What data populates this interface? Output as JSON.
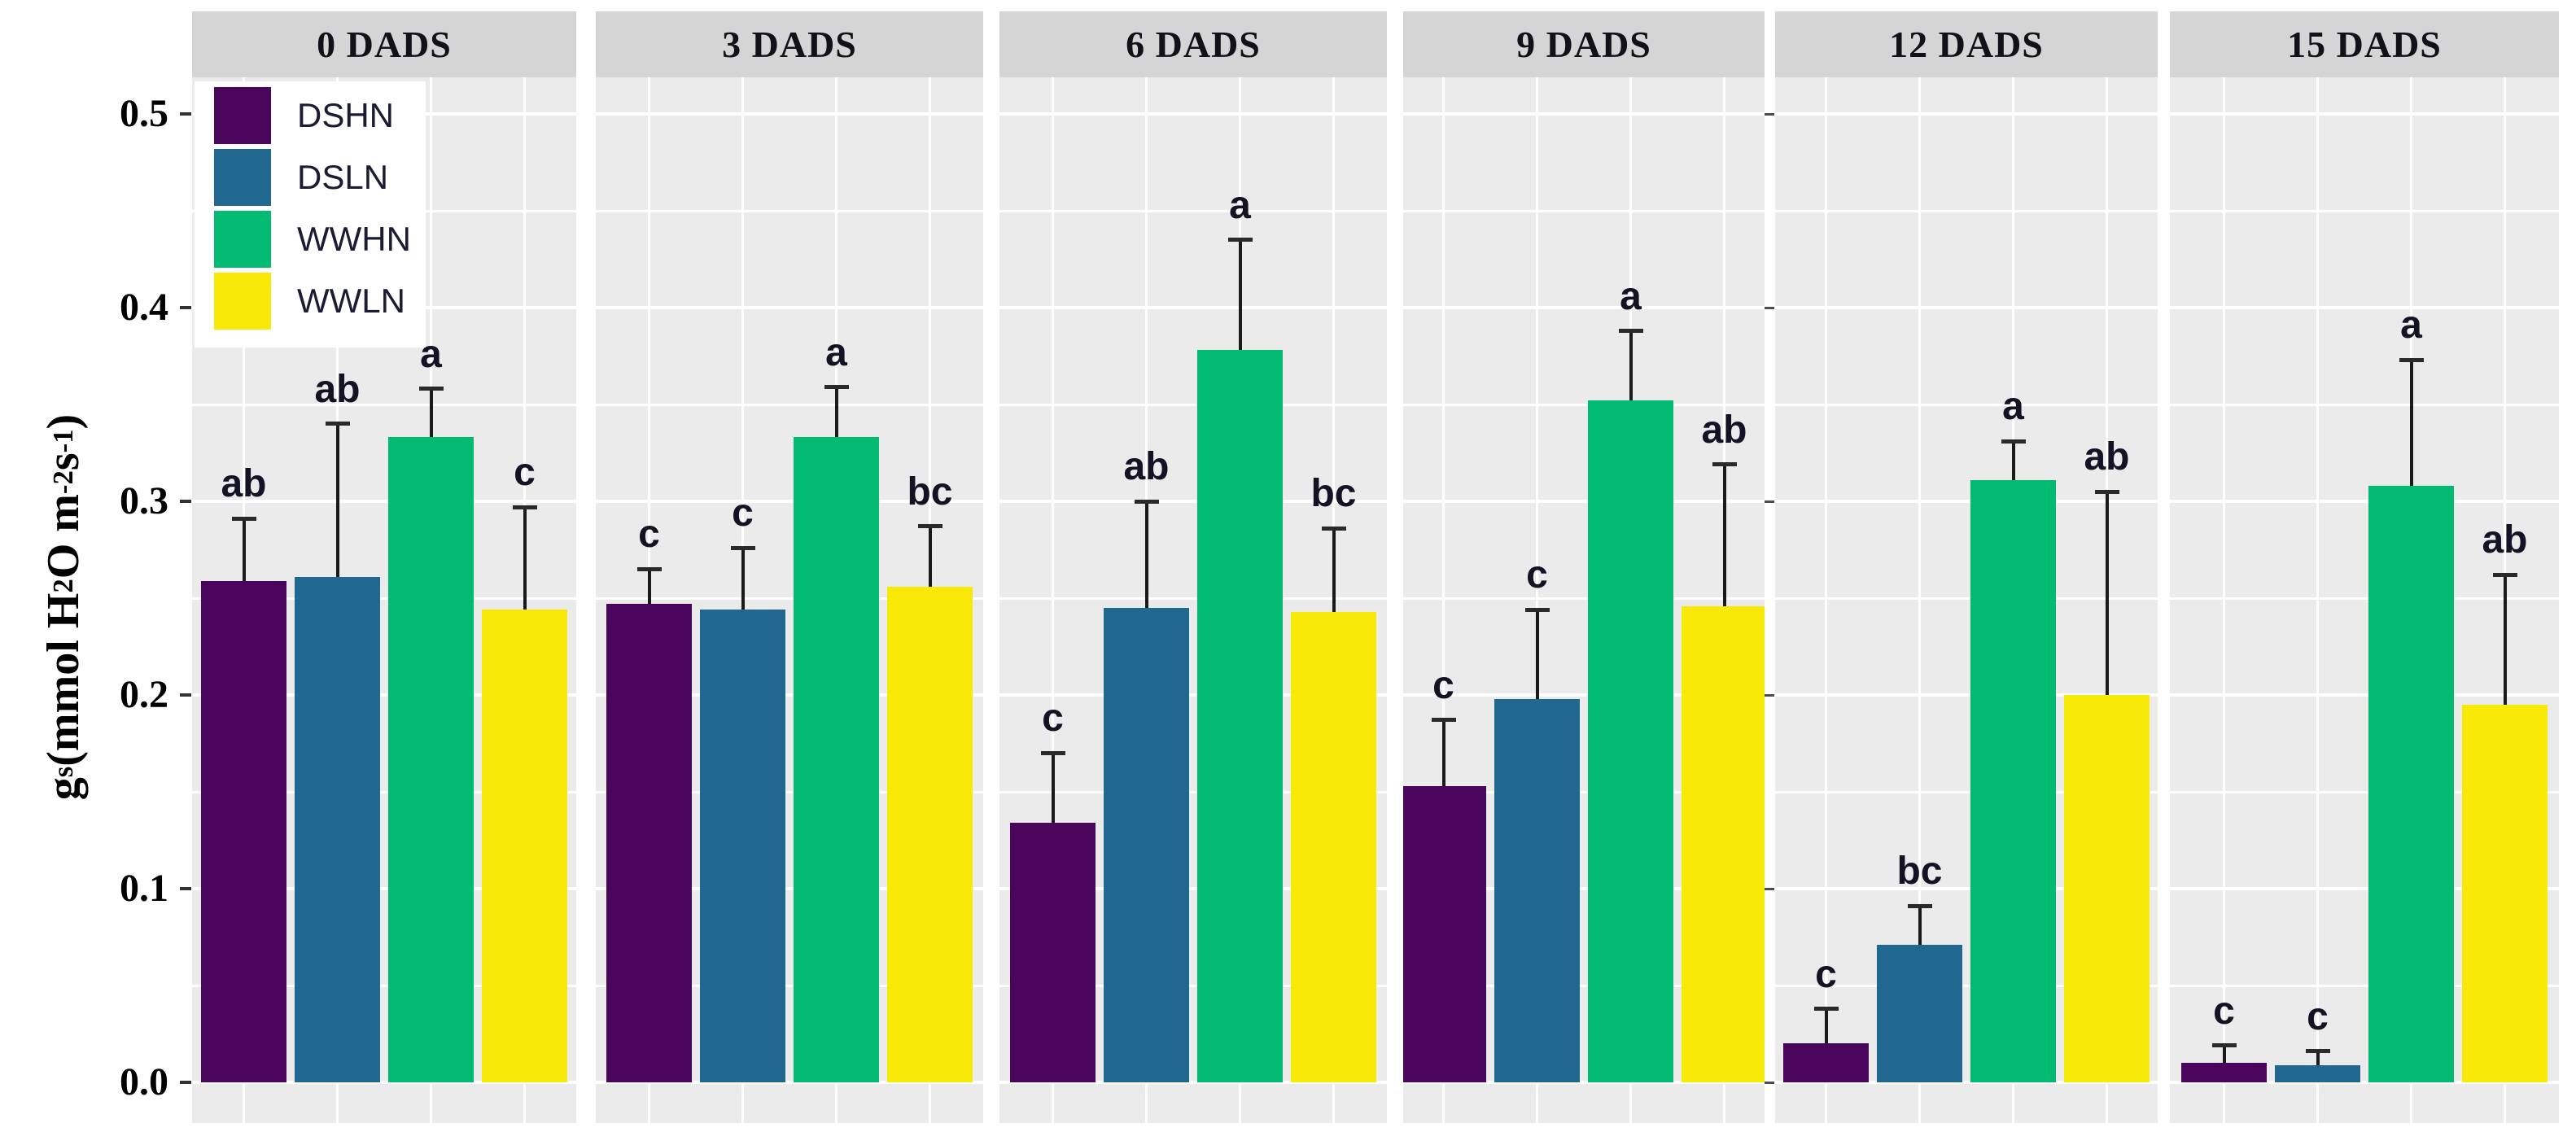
{
  "chart_data": {
    "type": "bar",
    "title": "",
    "ylabel": "gs (mmol H2O m-2 s-1)",
    "ylabel_parts": [
      {
        "text": "g"
      },
      {
        "text": "s",
        "style": "sub"
      },
      {
        "text": " (mmol H"
      },
      {
        "text": "2",
        "style": "sub"
      },
      {
        "text": "O m"
      },
      {
        "text": "-2",
        "style": "sup"
      },
      {
        "text": " s"
      },
      {
        "text": "-1",
        "style": "sup"
      },
      {
        "text": ")"
      }
    ],
    "xlabel": "",
    "ylim": [
      0,
      0.52
    ],
    "grid": true,
    "yticks": [
      {
        "value": 0.0,
        "label": "0.0"
      },
      {
        "value": 0.1,
        "label": "0.1"
      },
      {
        "value": 0.2,
        "label": "0.2"
      },
      {
        "value": 0.3,
        "label": "0.3"
      },
      {
        "value": 0.4,
        "label": "0.4"
      },
      {
        "value": 0.5,
        "label": "0.5"
      }
    ],
    "series_order": [
      "DSHN",
      "DSLN",
      "WWHN",
      "WWLN"
    ],
    "facets": [
      {
        "label": "0 DADS",
        "bars": [
          {
            "group": "DSHN",
            "value": 0.259,
            "error_top": 0.291,
            "letter": "ab"
          },
          {
            "group": "DSLN",
            "value": 0.261,
            "error_top": 0.34,
            "letter": "ab"
          },
          {
            "group": "WWHN",
            "value": 0.333,
            "error_top": 0.358,
            "letter": "a"
          },
          {
            "group": "WWLN",
            "value": 0.244,
            "error_top": 0.297,
            "letter": "c"
          }
        ]
      },
      {
        "label": "3 DADS",
        "bars": [
          {
            "group": "DSHN",
            "value": 0.247,
            "error_top": 0.265,
            "letter": "c"
          },
          {
            "group": "DSLN",
            "value": 0.244,
            "error_top": 0.276,
            "letter": "c"
          },
          {
            "group": "WWHN",
            "value": 0.333,
            "error_top": 0.359,
            "letter": "a"
          },
          {
            "group": "WWLN",
            "value": 0.256,
            "error_top": 0.287,
            "letter": "bc"
          }
        ]
      },
      {
        "label": "6 DADS",
        "bars": [
          {
            "group": "DSHN",
            "value": 0.134,
            "error_top": 0.17,
            "letter": "c"
          },
          {
            "group": "DSLN",
            "value": 0.245,
            "error_top": 0.3,
            "letter": "ab"
          },
          {
            "group": "WWHN",
            "value": 0.378,
            "error_top": 0.435,
            "letter": "a"
          },
          {
            "group": "WWLN",
            "value": 0.243,
            "error_top": 0.286,
            "letter": "bc"
          }
        ]
      },
      {
        "label": "9 DADS",
        "bars": [
          {
            "group": "DSHN",
            "value": 0.153,
            "error_top": 0.187,
            "letter": "c"
          },
          {
            "group": "DSLN",
            "value": 0.198,
            "error_top": 0.244,
            "letter": "c"
          },
          {
            "group": "WWHN",
            "value": 0.352,
            "error_top": 0.388,
            "letter": "a"
          },
          {
            "group": "WWLN",
            "value": 0.246,
            "error_top": 0.319,
            "letter": "ab"
          }
        ]
      },
      {
        "label": "12 DADS",
        "bars": [
          {
            "group": "DSHN",
            "value": 0.02,
            "error_top": 0.038,
            "letter": "c"
          },
          {
            "group": "DSLN",
            "value": 0.071,
            "error_top": 0.091,
            "letter": "bc"
          },
          {
            "group": "WWHN",
            "value": 0.311,
            "error_top": 0.331,
            "letter": "a"
          },
          {
            "group": "WWLN",
            "value": 0.2,
            "error_top": 0.305,
            "letter": "ab"
          }
        ]
      },
      {
        "label": "15 DADS",
        "bars": [
          {
            "group": "DSHN",
            "value": 0.01,
            "error_top": 0.019,
            "letter": "c"
          },
          {
            "group": "DSLN",
            "value": 0.009,
            "error_top": 0.016,
            "letter": "c"
          },
          {
            "group": "WWHN",
            "value": 0.308,
            "error_top": 0.373,
            "letter": "a"
          },
          {
            "group": "WWLN",
            "value": 0.195,
            "error_top": 0.262,
            "letter": "ab"
          }
        ]
      }
    ],
    "legend_position": "top-left-inside-first-facet"
  },
  "legend": {
    "items": [
      {
        "label": "DSHN",
        "color": "#4A055C"
      },
      {
        "label": "DSLN",
        "color": "#20688F"
      },
      {
        "label": "WWHN",
        "color": "#02BA71"
      },
      {
        "label": "WWLN",
        "color": "#F8E909"
      }
    ]
  },
  "colors": {
    "panel_background": "#ebebeb",
    "facet_header_background": "#d5d5d5",
    "gridline": "#ffffff",
    "error_bar": "#1a1a1a",
    "text": "#000000",
    "background": "#ffffff"
  }
}
